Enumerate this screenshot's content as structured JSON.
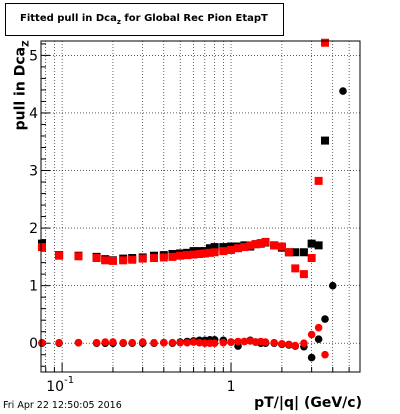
{
  "chart_data": {
    "type": "scatter",
    "title_main": "Fitted pull in Dca",
    "title_sub": "z",
    "title_rest": " for Global Rec Pion EtapT",
    "ylabel_main": "pull in Dca",
    "ylabel_sub": "Z",
    "xlabel": "pT/|q| (GeV/c)",
    "x_scale": "log",
    "xlim": [
      0.075,
      5.8
    ],
    "ylim": [
      -0.5,
      5.25
    ],
    "x_ticks": [
      {
        "value": 0.1,
        "label": "10",
        "exp": "-1"
      },
      {
        "value": 1,
        "label": "1",
        "exp": ""
      }
    ],
    "y_ticks": [
      0,
      1,
      2,
      3,
      4,
      5
    ],
    "grid": true,
    "series": [
      {
        "color": "#000000",
        "marker": "circle",
        "points": [
          [
            0.076,
            0.0
          ],
          [
            0.096,
            0.0
          ],
          [
            0.125,
            0.01
          ],
          [
            0.16,
            0.0
          ],
          [
            0.18,
            0.0
          ],
          [
            0.2,
            0.0
          ],
          [
            0.23,
            0.0
          ],
          [
            0.26,
            0.0
          ],
          [
            0.3,
            0.0
          ],
          [
            0.35,
            0.0
          ],
          [
            0.4,
            0.01
          ],
          [
            0.45,
            0.0
          ],
          [
            0.5,
            0.02
          ],
          [
            0.55,
            0.03
          ],
          [
            0.6,
            0.04
          ],
          [
            0.65,
            0.05
          ],
          [
            0.7,
            0.05
          ],
          [
            0.75,
            0.06
          ],
          [
            0.8,
            0.06
          ],
          [
            0.9,
            0.05
          ],
          [
            1.0,
            0.02
          ],
          [
            1.1,
            -0.05
          ],
          [
            1.2,
            0.03
          ],
          [
            1.3,
            0.05
          ],
          [
            1.4,
            0.02
          ],
          [
            1.5,
            0.0
          ],
          [
            1.6,
            0.0
          ],
          [
            1.8,
            0.0
          ],
          [
            2.0,
            -0.02
          ],
          [
            2.2,
            -0.03
          ],
          [
            2.4,
            -0.05
          ],
          [
            2.7,
            -0.06
          ],
          [
            3.0,
            -0.25
          ],
          [
            3.3,
            0.07
          ],
          [
            3.6,
            0.42
          ],
          [
            4.0,
            1.0
          ],
          [
            4.6,
            4.38
          ]
        ]
      },
      {
        "color": "#000000",
        "marker": "square",
        "points": [
          [
            0.076,
            1.73
          ],
          [
            0.096,
            1.53
          ],
          [
            0.125,
            1.52
          ],
          [
            0.16,
            1.5
          ],
          [
            0.18,
            1.46
          ],
          [
            0.2,
            1.44
          ],
          [
            0.23,
            1.47
          ],
          [
            0.26,
            1.48
          ],
          [
            0.3,
            1.49
          ],
          [
            0.35,
            1.52
          ],
          [
            0.4,
            1.53
          ],
          [
            0.45,
            1.55
          ],
          [
            0.5,
            1.56
          ],
          [
            0.55,
            1.57
          ],
          [
            0.6,
            1.6
          ],
          [
            0.65,
            1.6
          ],
          [
            0.7,
            1.6
          ],
          [
            0.75,
            1.65
          ],
          [
            0.8,
            1.67
          ],
          [
            0.9,
            1.67
          ],
          [
            1.0,
            1.68
          ],
          [
            1.1,
            1.68
          ],
          [
            1.2,
            1.7
          ],
          [
            1.3,
            1.68
          ],
          [
            1.4,
            1.72
          ],
          [
            1.5,
            1.73
          ],
          [
            1.6,
            1.75
          ],
          [
            1.8,
            1.7
          ],
          [
            2.0,
            1.66
          ],
          [
            2.2,
            1.58
          ],
          [
            2.4,
            1.58
          ],
          [
            2.7,
            1.58
          ],
          [
            3.0,
            1.73
          ],
          [
            3.3,
            1.7
          ],
          [
            3.6,
            3.52
          ]
        ]
      },
      {
        "color": "#ff0000",
        "marker": "circle",
        "points": [
          [
            0.076,
            0.01
          ],
          [
            0.096,
            0.01
          ],
          [
            0.125,
            0.01
          ],
          [
            0.16,
            0.01
          ],
          [
            0.18,
            0.02
          ],
          [
            0.2,
            0.02
          ],
          [
            0.23,
            0.01
          ],
          [
            0.26,
            0.01
          ],
          [
            0.3,
            0.02
          ],
          [
            0.35,
            0.01
          ],
          [
            0.4,
            0.01
          ],
          [
            0.45,
            0.01
          ],
          [
            0.5,
            0.01
          ],
          [
            0.55,
            0.01
          ],
          [
            0.6,
            0.02
          ],
          [
            0.65,
            0.01
          ],
          [
            0.7,
            0.0
          ],
          [
            0.75,
            0.0
          ],
          [
            0.8,
            0.0
          ],
          [
            0.9,
            0.01
          ],
          [
            1.0,
            0.02
          ],
          [
            1.1,
            0.03
          ],
          [
            1.2,
            0.03
          ],
          [
            1.3,
            0.04
          ],
          [
            1.4,
            0.02
          ],
          [
            1.5,
            0.03
          ],
          [
            1.6,
            0.02
          ],
          [
            1.8,
            0.01
          ],
          [
            2.0,
            -0.01
          ],
          [
            2.2,
            -0.02
          ],
          [
            2.4,
            -0.04
          ],
          [
            2.7,
            0.0
          ],
          [
            3.0,
            0.15
          ],
          [
            3.3,
            0.27
          ],
          [
            3.6,
            -0.2
          ]
        ]
      },
      {
        "color": "#ff0000",
        "marker": "square",
        "points": [
          [
            0.076,
            1.67
          ],
          [
            0.096,
            1.52
          ],
          [
            0.125,
            1.51
          ],
          [
            0.16,
            1.48
          ],
          [
            0.18,
            1.44
          ],
          [
            0.2,
            1.43
          ],
          [
            0.23,
            1.44
          ],
          [
            0.26,
            1.45
          ],
          [
            0.3,
            1.47
          ],
          [
            0.35,
            1.48
          ],
          [
            0.4,
            1.49
          ],
          [
            0.45,
            1.5
          ],
          [
            0.5,
            1.52
          ],
          [
            0.55,
            1.53
          ],
          [
            0.6,
            1.54
          ],
          [
            0.65,
            1.55
          ],
          [
            0.7,
            1.56
          ],
          [
            0.75,
            1.57
          ],
          [
            0.8,
            1.58
          ],
          [
            0.9,
            1.6
          ],
          [
            1.0,
            1.62
          ],
          [
            1.1,
            1.65
          ],
          [
            1.2,
            1.67
          ],
          [
            1.3,
            1.7
          ],
          [
            1.4,
            1.72
          ],
          [
            1.5,
            1.74
          ],
          [
            1.6,
            1.76
          ],
          [
            1.8,
            1.7
          ],
          [
            2.0,
            1.68
          ],
          [
            2.2,
            1.58
          ],
          [
            2.4,
            1.3
          ],
          [
            2.7,
            1.2
          ],
          [
            3.0,
            1.48
          ],
          [
            3.3,
            2.82
          ],
          [
            3.6,
            5.22
          ]
        ]
      }
    ]
  },
  "footer": {
    "datestamp": "Fri Apr 22 12:50:05 2016"
  }
}
